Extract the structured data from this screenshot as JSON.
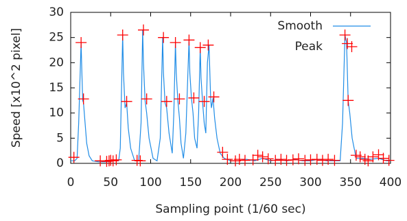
{
  "chart_data": {
    "type": "line",
    "xlabel": "Sampling point (1/60 sec)",
    "ylabel": "Speed [x10^2 pixel]",
    "xlim": [
      0,
      400
    ],
    "xticks": [
      0,
      50,
      100,
      150,
      200,
      250,
      300,
      350,
      400
    ],
    "ylim": [
      0,
      30
    ],
    "yticks": [
      0,
      5,
      10,
      15,
      20,
      25,
      30
    ],
    "legend": "top-right",
    "series": [
      {
        "name": "Smooth",
        "type": "line",
        "color": "#1f8ce6",
        "x": [
          0,
          5,
          8,
          10,
          13,
          14,
          15,
          16,
          18,
          20,
          23,
          27,
          35,
          45,
          55,
          60,
          62,
          65,
          66,
          68,
          70,
          72,
          75,
          80,
          85,
          88,
          90,
          91,
          93,
          95,
          98,
          103,
          108,
          112,
          115,
          116,
          118,
          120,
          123,
          127,
          129,
          131,
          132,
          134,
          136,
          138,
          141,
          144,
          148,
          149,
          151,
          153,
          155,
          158,
          160,
          162,
          163,
          165,
          167,
          169,
          171,
          173,
          175,
          176,
          178,
          180,
          183,
          187,
          192,
          200,
          210,
          220,
          230,
          240,
          250,
          260,
          270,
          280,
          290,
          300,
          310,
          320,
          330,
          337,
          340,
          343,
          345,
          347,
          349,
          352,
          357,
          365,
          375,
          385,
          395,
          400
        ],
        "values": [
          0.5,
          0.5,
          1,
          8,
          24,
          18,
          12.5,
          12,
          8,
          4,
          1.5,
          0.5,
          0.3,
          0.3,
          0.5,
          0.5,
          3,
          25.5,
          18,
          11,
          12,
          7,
          3,
          0.5,
          0.5,
          8,
          26.5,
          20,
          12.5,
          10,
          5,
          1,
          0.5,
          5,
          25,
          18,
          12,
          11,
          6,
          2,
          10,
          24,
          18,
          12.5,
          9,
          4,
          1,
          6,
          24.5,
          18,
          13,
          10,
          5,
          3,
          10,
          23,
          17,
          12,
          8,
          6,
          20,
          23.5,
          13,
          11,
          13,
          9,
          5,
          2,
          1,
          0.5,
          0.5,
          0.8,
          0.5,
          1,
          0.5,
          0.8,
          0.5,
          0.8,
          0.5,
          0.5,
          0.8,
          0.5,
          0.5,
          0.5,
          8,
          25.5,
          24,
          12.5,
          10,
          5,
          1,
          1,
          0.8,
          1,
          0.5,
          0.5
        ]
      },
      {
        "name": "Peak",
        "type": "scatter",
        "marker": "+",
        "color": "#ff0000",
        "x": [
          4,
          13,
          16,
          37,
          45,
          48,
          50,
          53,
          57,
          65,
          70,
          83,
          87,
          91,
          95,
          116,
          120,
          131,
          136,
          148,
          154,
          162,
          167,
          172,
          179,
          190,
          196,
          206,
          211,
          218,
          228,
          234,
          240,
          247,
          256,
          263,
          270,
          278,
          285,
          293,
          300,
          308,
          315,
          322,
          330,
          343,
          346,
          347,
          357,
          362,
          368,
          372,
          378,
          385,
          391,
          398
        ],
        "values": [
          1.2,
          24,
          12.8,
          0.5,
          0.4,
          0.5,
          0.6,
          0.5,
          0.7,
          25.5,
          12.3,
          0.6,
          0.5,
          26.5,
          12.8,
          25,
          12.3,
          24,
          12.8,
          24.5,
          13,
          23,
          12.3,
          23.5,
          13.2,
          2.2,
          0.8,
          0.5,
          0.8,
          0.6,
          0.7,
          1.6,
          1.3,
          0.9,
          0.6,
          0.8,
          0.6,
          0.7,
          0.9,
          0.6,
          0.7,
          0.8,
          0.6,
          0.8,
          0.6,
          25.5,
          23.8,
          12.5,
          1.6,
          1.3,
          0.8,
          0.5,
          1.3,
          1.7,
          1,
          0.6
        ]
      }
    ]
  }
}
